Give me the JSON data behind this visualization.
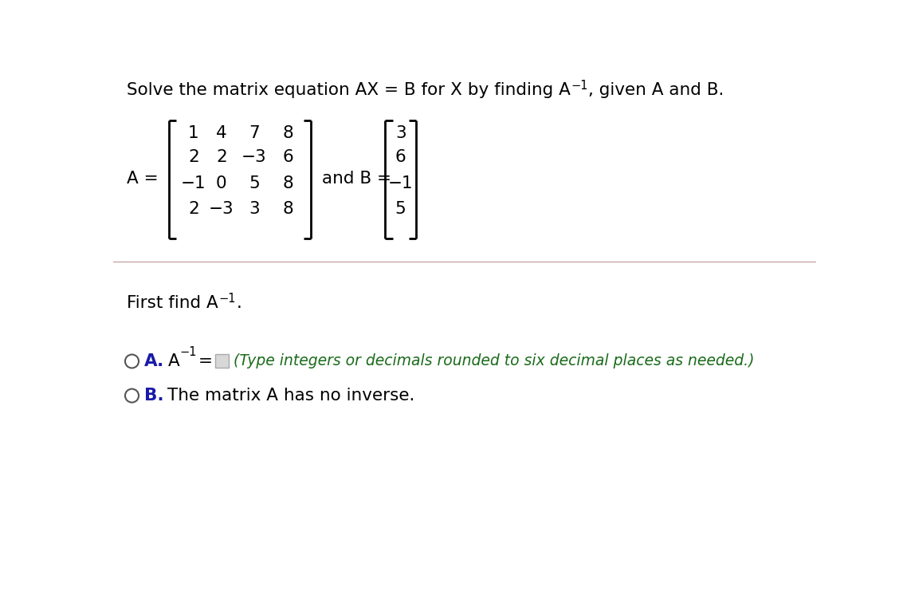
{
  "bg_color": "#ffffff",
  "text_color": "#000000",
  "blue_color": "#1a1aaa",
  "hint_color": "#1a6b1a",
  "circle_color": "#555555",
  "matrix_A": [
    [
      "1",
      "4",
      "7",
      "8"
    ],
    [
      "2",
      "2",
      "−3",
      "6"
    ],
    [
      "−1",
      "0",
      "5",
      "8"
    ],
    [
      "2",
      "−3",
      "3",
      "8"
    ]
  ],
  "matrix_B": [
    "3",
    "6",
    "−1",
    "5"
  ],
  "title_main": "Solve the matrix equation AX = B for X by finding A",
  "title_sup": "−1",
  "title_rest": ", given A and B.",
  "ff_main": "First find A",
  "ff_sup": "−1",
  "ff_rest": ".",
  "hint_text": "(Type integers or decimals rounded to six decimal places as needed.)",
  "optB_text": "The matrix A has no inverse."
}
